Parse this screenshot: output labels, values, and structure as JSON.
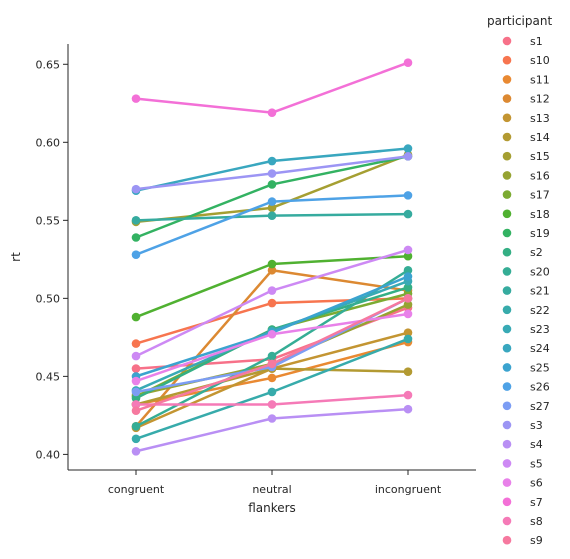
{
  "chart_data": {
    "type": "line",
    "xlabel": "flankers",
    "ylabel": "rt",
    "categories": [
      "congruent",
      "neutral",
      "incongruent"
    ],
    "ylim": [
      0.39,
      0.663
    ],
    "yticks": [
      0.4,
      0.45,
      0.5,
      0.55,
      0.6,
      0.65
    ],
    "ytick_labels": [
      "0.40",
      "0.45",
      "0.50",
      "0.55",
      "0.60",
      "0.65"
    ],
    "grid": false,
    "markers": true,
    "legend_title": "participant",
    "legend_placement": "outside-right",
    "series": [
      {
        "name": "s1",
        "color": "#f77189",
        "values": [
          0.455,
          0.461,
          0.494
        ]
      },
      {
        "name": "s10",
        "color": "#f7754f",
        "values": [
          0.471,
          0.497,
          0.5
        ]
      },
      {
        "name": "s11",
        "color": "#e98932",
        "values": [
          0.432,
          0.449,
          0.472
        ]
      },
      {
        "name": "s12",
        "color": "#dc8932",
        "values": [
          0.418,
          0.518,
          0.505
        ]
      },
      {
        "name": "s13",
        "color": "#c39532",
        "values": [
          0.417,
          0.455,
          0.478
        ]
      },
      {
        "name": "s14",
        "color": "#b39a32",
        "values": [
          0.432,
          0.455,
          0.453
        ]
      },
      {
        "name": "s15",
        "color": "#a59f32",
        "values": [
          0.549,
          0.558,
          0.592
        ]
      },
      {
        "name": "s16",
        "color": "#96a332",
        "values": [
          0.438,
          0.458,
          0.496
        ]
      },
      {
        "name": "s17",
        "color": "#7cab32",
        "values": [
          0.437,
          0.48,
          0.503
        ]
      },
      {
        "name": "s18",
        "color": "#50b131",
        "values": [
          0.488,
          0.522,
          0.527
        ]
      },
      {
        "name": "s19",
        "color": "#33b262",
        "values": [
          0.539,
          0.573,
          0.591
        ]
      },
      {
        "name": "s2",
        "color": "#34af84",
        "values": [
          0.436,
          0.48,
          0.507
        ]
      },
      {
        "name": "s20",
        "color": "#35ad95",
        "values": [
          0.418,
          0.463,
          0.518
        ]
      },
      {
        "name": "s21",
        "color": "#36ab9f",
        "values": [
          0.55,
          0.553,
          0.554
        ]
      },
      {
        "name": "s22",
        "color": "#37abab",
        "values": [
          0.41,
          0.44,
          0.474
        ]
      },
      {
        "name": "s23",
        "color": "#38aab5",
        "values": [
          0.441,
          0.479,
          0.511
        ]
      },
      {
        "name": "s24",
        "color": "#39a7bf",
        "values": [
          0.569,
          0.588,
          0.596
        ]
      },
      {
        "name": "s25",
        "color": "#3ba3cf",
        "values": [
          0.45,
          0.478,
          0.514
        ]
      },
      {
        "name": "s26",
        "color": "#4ea2e6",
        "values": [
          0.528,
          0.562,
          0.566
        ]
      },
      {
        "name": "s27",
        "color": "#7c9df4",
        "values": [
          0.44,
          0.456,
          0.5
        ]
      },
      {
        "name": "s3",
        "color": "#9c95f4",
        "values": [
          0.57,
          0.58,
          0.591
        ]
      },
      {
        "name": "s4",
        "color": "#b98ff4",
        "values": [
          0.402,
          0.423,
          0.429
        ]
      },
      {
        "name": "s5",
        "color": "#cd89f4",
        "values": [
          0.463,
          0.505,
          0.531
        ]
      },
      {
        "name": "s6",
        "color": "#e881e9",
        "values": [
          0.447,
          0.477,
          0.49
        ]
      },
      {
        "name": "s7",
        "color": "#f370d7",
        "values": [
          0.628,
          0.619,
          0.651
        ]
      },
      {
        "name": "s8",
        "color": "#f57ab7",
        "values": [
          0.432,
          0.432,
          0.438
        ]
      },
      {
        "name": "s9",
        "color": "#f6799f",
        "values": [
          0.428,
          0.458,
          0.5
        ]
      }
    ]
  }
}
